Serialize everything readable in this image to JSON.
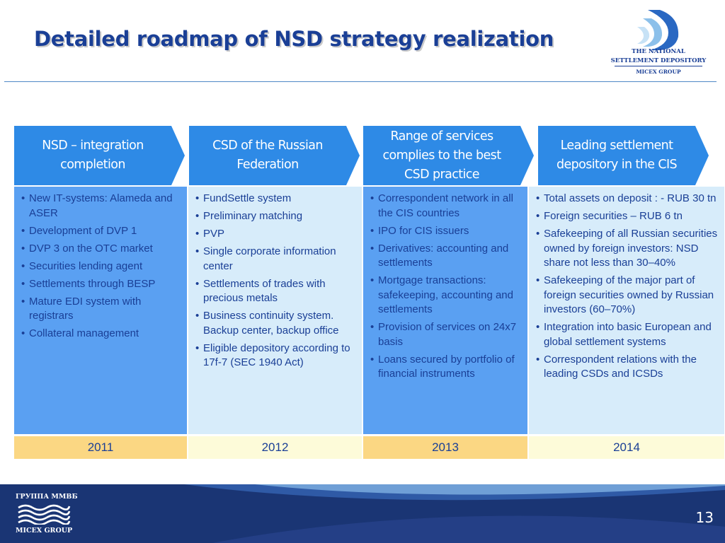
{
  "title": "Detailed roadmap of NSD strategy realization",
  "logo": {
    "line1": "THE NATIONAL",
    "line2": "SETTLEMENT DEPOSITORY",
    "line3": "MICEX GROUP"
  },
  "columns": [
    {
      "header": "NSD – integration completion",
      "year": "2011",
      "items": [
        "New IT-systems: Alameda and ASER",
        "Development of DVP 1",
        "DVP 3 on the OTC market",
        "Securities lending agent",
        "Settlements through BESP",
        "Mature EDI system with registrars",
        "Collateral management"
      ]
    },
    {
      "header": "CSD of the Russian Federation",
      "year": "2012",
      "items": [
        "FundSettle system",
        "Preliminary matching",
        "PVP",
        "Single corporate information center",
        "Settlements of trades with precious metals",
        "Business continuity system. Backup center, backup office",
        "Eligible depository according to 17f-7 (SEC 1940 Act)"
      ]
    },
    {
      "header": "Range of services complies to the best CSD practice",
      "year": "2013",
      "items": [
        "Correspondent network in all the CIS countries",
        "IPO for CIS issuers",
        "Derivatives: accounting and settlements",
        "Mortgage transactions: safekeeping, accounting and settlements",
        "Provision of services on 24x7 basis",
        "Loans secured by portfolio of financial instruments"
      ]
    },
    {
      "header": "Leading settlement depository in the CIS",
      "year": "2014",
      "items": [
        "Total assets on deposit : - RUB 30 tn",
        "Foreign securities – RUB 6 tn",
        "Safekeeping of all Russian securities owned by foreign investors: NSD share not less than 30–40%",
        "Safekeeping of the major part of foreign securities owned by Russian investors (60–70%)",
        "Integration into basic European and global settlement systems",
        "Correspondent relations with the leading CSDs and ICSDs"
      ]
    }
  ],
  "footer": {
    "logo_line1": "ГРУППА ММВБ",
    "logo_line2": "MICEX GROUP",
    "page_number": "13"
  },
  "colors": {
    "title_blue": "#1a3f96",
    "chevron_blue": "#2e8ae6",
    "column_blue": "#5aa0f2",
    "column_light": "#d7ecfa",
    "year_orange": "#fbd783",
    "year_yellow": "#fdfbd9",
    "footer_navy": "#1a3574"
  }
}
